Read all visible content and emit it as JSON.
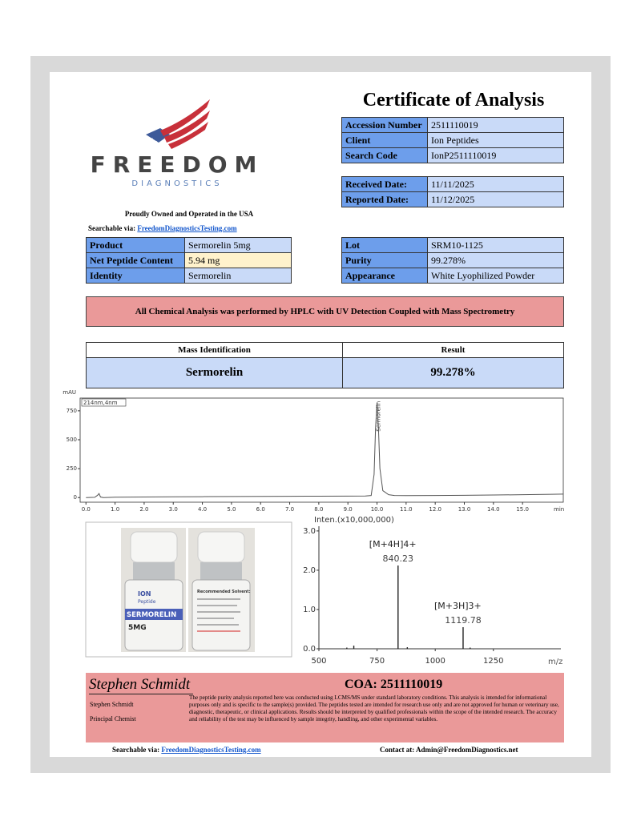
{
  "header": {
    "title": "Certificate of Analysis",
    "logo_name": "FREEDOM",
    "logo_sub": "DIAGNOSTICS",
    "tagline": "Proudly Owned and Operated in the USA",
    "search_label": "Searchable via:",
    "search_link": "FreedomDiagnosticsTesting.com"
  },
  "info_table": {
    "rows": [
      [
        "Accession Number",
        "2511110019"
      ],
      [
        "Client",
        "Ion Peptides"
      ],
      [
        "Search Code",
        "IonP2511110019"
      ]
    ]
  },
  "dates_table": {
    "rows": [
      [
        "Received Date:",
        "11/11/2025"
      ],
      [
        "Reported Date:",
        "11/12/2025"
      ]
    ]
  },
  "product_table": {
    "rows": [
      [
        "Product",
        "Sermorelin 5mg"
      ],
      [
        "Net Peptide Content",
        "5.94 mg"
      ],
      [
        "Identity",
        "Sermorelin"
      ]
    ]
  },
  "lot_table": {
    "rows": [
      [
        "Lot",
        "SRM10-1125"
      ],
      [
        "Purity",
        "99.278%"
      ],
      [
        "Appearance",
        "White Lyophilized Powder"
      ]
    ]
  },
  "method_banner": "All Chemical Analysis was performed by HPLC with UV Detection Coupled with Mass Spectrometry",
  "result_table": {
    "header": [
      "Mass Identification",
      "Result"
    ],
    "row": [
      "Sermorelin",
      "99.278%"
    ]
  },
  "chart_data": [
    {
      "type": "line",
      "y_axis_label": "mAU",
      "x_axis_label": "min",
      "detector_label": "214nm,4nm",
      "peak_label": "Sermorelin",
      "color": "#555555",
      "x": [
        0,
        0.3,
        0.4,
        0.45,
        0.5,
        0.6,
        1,
        2,
        3,
        4,
        5,
        6,
        7,
        8,
        9,
        9.6,
        9.8,
        9.9,
        9.95,
        10.0,
        10.05,
        10.1,
        10.2,
        10.4,
        10.6,
        11,
        12,
        13,
        14,
        15,
        16,
        16.4
      ],
      "values": [
        0,
        2,
        20,
        35,
        5,
        0,
        3,
        5,
        7,
        8,
        9,
        10,
        11,
        12,
        13,
        14,
        18,
        200,
        600,
        820,
        600,
        250,
        60,
        25,
        18,
        17,
        18,
        20,
        22,
        25,
        28,
        30
      ],
      "xlim": [
        -0.2,
        16.4
      ],
      "ylim": [
        -40,
        860
      ],
      "xticks": [
        {
          "value": 0,
          "label": "0.0"
        },
        {
          "value": 1,
          "label": "1.0"
        },
        {
          "value": 2,
          "label": "2.0"
        },
        {
          "value": 3,
          "label": "3.0"
        },
        {
          "value": 4,
          "label": "4.0"
        },
        {
          "value": 5,
          "label": "5.0"
        },
        {
          "value": 6,
          "label": "6.0"
        },
        {
          "value": 7,
          "label": "7.0"
        },
        {
          "value": 8,
          "label": "8.0"
        },
        {
          "value": 9,
          "label": "9.0"
        },
        {
          "value": 10,
          "label": "10.0"
        },
        {
          "value": 11,
          "label": "11.0"
        },
        {
          "value": 12,
          "label": "12.0"
        },
        {
          "value": 13,
          "label": "13.0"
        },
        {
          "value": 14,
          "label": "14.0"
        },
        {
          "value": 15,
          "label": "15.0"
        }
      ],
      "yticks": [
        0,
        250,
        500,
        750
      ]
    },
    {
      "type": "stem",
      "y_axis_label": "Inten.(x10,000,000)",
      "x_axis_label": "m/z",
      "color": "#222222",
      "peak_annotations": [
        "[M+4H]4+",
        "[M+3H]3+"
      ],
      "x": [
        620,
        650,
        840.23,
        880,
        1119.78,
        1150
      ],
      "values": [
        0.03,
        0.08,
        2.12,
        0.04,
        0.55,
        0.03
      ],
      "xlim": [
        500,
        1540
      ],
      "ylim": [
        0,
        3.12
      ],
      "xticks": [
        500,
        750,
        1000,
        1250
      ],
      "yticks": [
        {
          "value": 0,
          "label": "0.0"
        },
        {
          "value": 1,
          "label": "1.0"
        },
        {
          "value": 2,
          "label": "2.0"
        },
        {
          "value": 3,
          "label": "3.0"
        }
      ]
    }
  ],
  "vial_label": {
    "brand": "ION",
    "brand_sub": "Peptide",
    "name": "SERMORELIN",
    "dose": "5MG",
    "back_title": "Recommended Solvent:"
  },
  "signature": {
    "signature": "Stephen Schmidt",
    "coa": "COA: 2511110019",
    "name": "Stephen Schmidt",
    "role": "Principal Chemist",
    "disclaimer": "The peptide purity analysis reported here was conducted using LCMS/MS under standard laboratory conditions. This analysis is intended for informational purposes only and is specific to the sample(s) provided. The peptides tested are intended for research use only and are not approved for human or veterinary use, diagnostic, therapeutic, or clinical applications. Results should be interpreted by qualified professionals within the scope of the intended research. The accuracy and reliability of the test may be influenced by sample integrity, handling, and other experimental variables."
  },
  "footer": {
    "search_label": "Searchable via:",
    "search_link": "FreedomDiagnosticsTesting.com",
    "contact": "Contact at: Admin@FreedomDiagnostics.net"
  }
}
